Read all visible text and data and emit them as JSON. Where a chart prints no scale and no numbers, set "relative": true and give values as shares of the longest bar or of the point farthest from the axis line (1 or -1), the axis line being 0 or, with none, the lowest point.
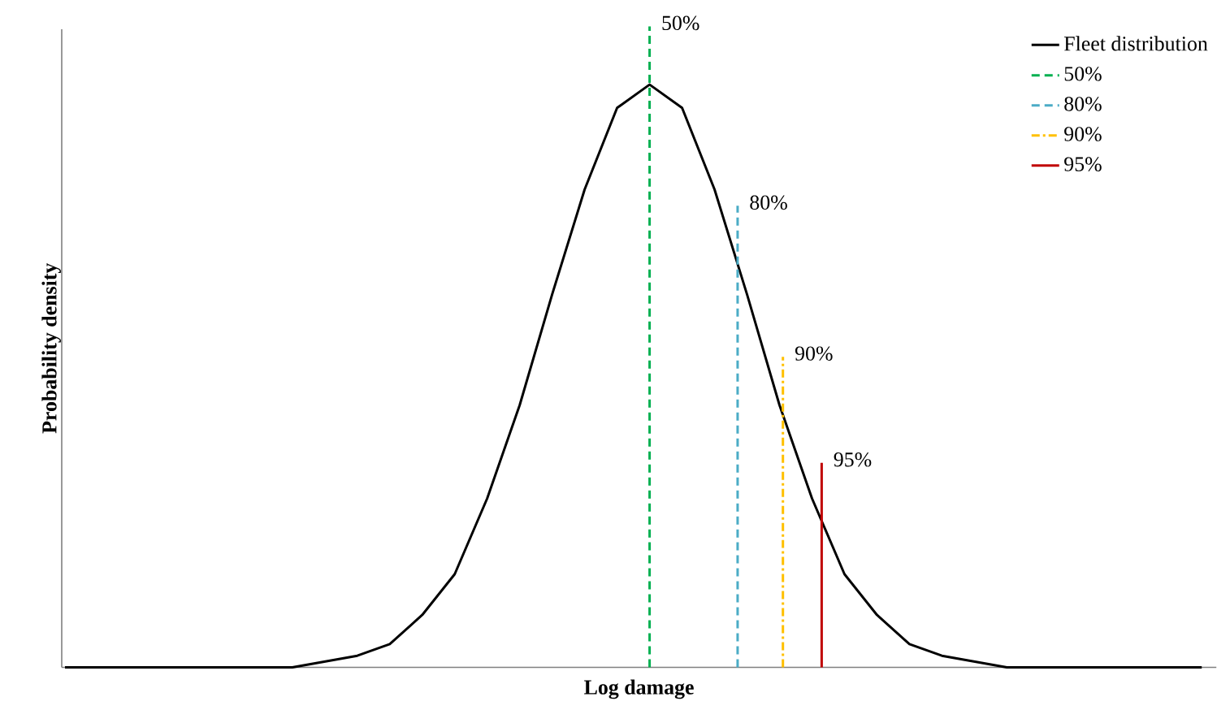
{
  "chart_data": {
    "type": "line",
    "relative": true,
    "xlabel": "Log damage",
    "ylabel": "Probability density",
    "legend": "top right",
    "categories": [
      null,
      null,
      null,
      null,
      null,
      null,
      null,
      null,
      null,
      null,
      null,
      null,
      null,
      null,
      null,
      null,
      null,
      null,
      null,
      null,
      null,
      null,
      null,
      null,
      null,
      null,
      null,
      null,
      null,
      null,
      null,
      null,
      null,
      null,
      null,
      null
    ],
    "series": [
      {
        "name": "Fleet distribution",
        "color": "#000000",
        "line_style": "solid",
        "values": [
          0,
          0,
          0,
          0,
          0,
          0,
          0,
          0,
          0.01,
          0.02,
          0.04,
          0.09,
          0.16,
          0.29,
          0.45,
          0.64,
          0.82,
          0.96,
          1,
          0.96,
          0.82,
          0.64,
          0.45,
          0.29,
          0.16,
          0.09,
          0.04,
          0.02,
          0.01,
          0,
          0,
          0,
          0,
          0,
          0,
          0
        ]
      },
      {
        "name": "50%",
        "color": "#00b050",
        "line_style": "dashed",
        "values": [
          null,
          null,
          null,
          null,
          null,
          null,
          null,
          null,
          null,
          null,
          null,
          null,
          null,
          null,
          null,
          null,
          null,
          null,
          null,
          null,
          null,
          null,
          null,
          null,
          null,
          null,
          null,
          null,
          null,
          null,
          null,
          null,
          null,
          null,
          null,
          null
        ]
      },
      {
        "name": "80%",
        "color": "#4bacc6",
        "line_style": "dashed",
        "values": [
          null,
          null,
          null,
          null,
          null,
          null,
          null,
          null,
          null,
          null,
          null,
          null,
          null,
          null,
          null,
          null,
          null,
          null,
          null,
          null,
          null,
          null,
          null,
          null,
          null,
          null,
          null,
          null,
          null,
          null,
          null,
          null,
          null,
          null,
          null,
          null
        ]
      },
      {
        "name": "90%",
        "color": "#ffc000",
        "line_style": "dashdot",
        "values": [
          null,
          null,
          null,
          null,
          null,
          null,
          null,
          null,
          null,
          null,
          null,
          null,
          null,
          null,
          null,
          null,
          null,
          null,
          null,
          null,
          null,
          null,
          null,
          null,
          null,
          null,
          null,
          null,
          null,
          null,
          null,
          null,
          null,
          null,
          null,
          null
        ]
      },
      {
        "name": "95%",
        "color": "#c00000",
        "line_style": "solid",
        "values": [
          null,
          null,
          null,
          null,
          null,
          null,
          null,
          null,
          null,
          null,
          null,
          null,
          null,
          null,
          null,
          null,
          null,
          null,
          null,
          null,
          null,
          null,
          null,
          null,
          null,
          null,
          null,
          null,
          null,
          null,
          null,
          null,
          null,
          null,
          null,
          null
        ]
      }
    ],
    "annotations": [
      "50%",
      "80%",
      "90%",
      "95%"
    ]
  }
}
